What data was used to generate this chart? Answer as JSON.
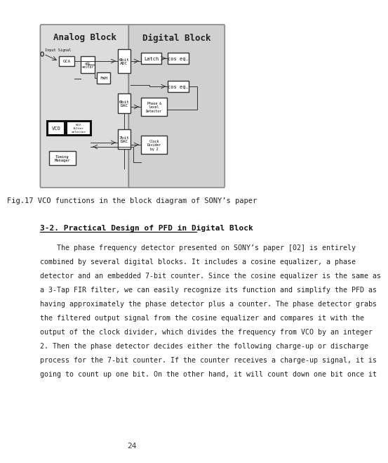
{
  "bg_color": "#ffffff",
  "fig_caption": "Fig.17 VCO functions in the block diagram of SONY’s paper",
  "section_heading": "3-2. Practical Design of PFD in Digital Block",
  "page_number": "24",
  "body_lines": [
    "    The phase frequency detector presented on SONY’s paper [02] is entirely",
    "combined by several digital blocks. It includes a cosine equalizer, a phase",
    "detector and an embedded 7-bit counter. Since the cosine equalizer is the same as",
    "a 3-Tap FIR filter, we can easily recognize its function and simplify the PFD as",
    "having approximately the phase detector plus a counter. The phase detector grabs",
    "the filtered output signal from the cosine equalizer and compares it with the",
    "output of the clock divider, which divides the frequency from VCO by an integer",
    "2. Then the phase detector decides either the following charge-up or discharge",
    "process for the 7-bit counter. If the counter receives a charge-up signal, it is",
    "going to count up one bit. On the other hand, it will count down one bit once it"
  ]
}
